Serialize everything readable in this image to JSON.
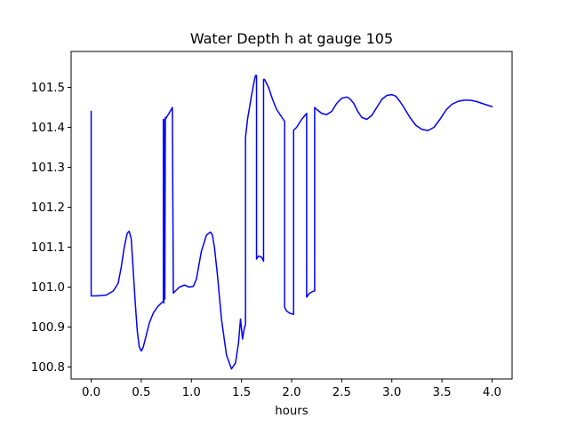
{
  "chart_data": {
    "type": "line",
    "title": "Water Depth h at gauge 105",
    "xlabel": "hours",
    "ylabel": "",
    "xlim": [
      -0.2,
      4.2
    ],
    "ylim": [
      100.77,
      101.59
    ],
    "xticks": [
      0.0,
      0.5,
      1.0,
      1.5,
      2.0,
      2.5,
      3.0,
      3.5,
      4.0
    ],
    "xtick_labels": [
      "0.0",
      "0.5",
      "1.0",
      "1.5",
      "2.0",
      "2.5",
      "3.0",
      "3.5",
      "4.0"
    ],
    "yticks": [
      100.8,
      100.9,
      101.0,
      101.1,
      101.2,
      101.3,
      101.4,
      101.5
    ],
    "ytick_labels": [
      "100.8",
      "100.9",
      "101.0",
      "101.1",
      "101.2",
      "101.3",
      "101.4",
      "101.5"
    ],
    "grid": false,
    "series": [
      {
        "color": "#0000ff",
        "x": [
          0.0,
          0.0,
          0.05,
          0.15,
          0.22,
          0.27,
          0.3,
          0.33,
          0.36,
          0.38,
          0.4,
          0.42,
          0.44,
          0.46,
          0.48,
          0.5,
          0.52,
          0.55,
          0.58,
          0.62,
          0.66,
          0.7,
          0.72,
          0.72,
          0.725,
          0.735,
          0.735,
          0.74,
          0.74,
          0.8,
          0.81,
          0.82,
          0.88,
          0.93,
          0.98,
          1.02,
          1.05,
          1.1,
          1.15,
          1.19,
          1.21,
          1.23,
          1.26,
          1.3,
          1.35,
          1.4,
          1.44,
          1.47,
          1.49,
          1.51,
          1.53,
          1.54,
          1.54,
          1.56,
          1.6,
          1.63,
          1.64,
          1.65,
          1.65,
          1.67,
          1.7,
          1.72,
          1.72,
          1.73,
          1.77,
          1.81,
          1.85,
          1.89,
          1.93,
          1.93,
          1.95,
          1.98,
          2.0,
          2.02,
          2.02,
          2.05,
          2.1,
          2.15,
          2.15,
          2.18,
          2.22,
          2.23,
          2.23,
          2.25,
          2.3,
          2.35,
          2.4,
          2.45,
          2.5,
          2.55,
          2.58,
          2.62,
          2.66,
          2.7,
          2.75,
          2.8,
          2.85,
          2.9,
          2.95,
          3.0,
          3.04,
          3.08,
          3.12,
          3.18,
          3.24,
          3.3,
          3.36,
          3.42,
          3.48,
          3.54,
          3.6,
          3.66,
          3.72,
          3.78,
          3.84,
          3.9,
          3.96,
          4.0
        ],
        "y": [
          101.44,
          100.978,
          100.978,
          100.98,
          100.99,
          101.01,
          101.05,
          101.1,
          101.135,
          101.14,
          101.12,
          101.04,
          100.96,
          100.89,
          100.85,
          100.84,
          100.85,
          100.88,
          100.91,
          100.935,
          100.95,
          100.96,
          100.965,
          101.42,
          100.96,
          101.42,
          100.97,
          101.425,
          101.42,
          101.445,
          101.45,
          100.985,
          101.0,
          101.005,
          101.0,
          101.002,
          101.02,
          101.09,
          101.13,
          101.138,
          101.13,
          101.1,
          101.03,
          100.92,
          100.83,
          100.795,
          100.81,
          100.86,
          100.92,
          100.87,
          100.9,
          100.905,
          101.375,
          101.42,
          101.48,
          101.52,
          101.53,
          101.53,
          101.07,
          101.078,
          101.075,
          101.065,
          101.52,
          101.52,
          101.5,
          101.47,
          101.445,
          101.43,
          101.415,
          100.95,
          100.94,
          100.935,
          100.933,
          100.932,
          101.393,
          101.4,
          101.42,
          101.435,
          100.975,
          100.985,
          100.99,
          100.99,
          101.45,
          101.445,
          101.435,
          101.432,
          101.44,
          101.46,
          101.473,
          101.476,
          101.472,
          101.46,
          101.44,
          101.425,
          101.42,
          101.43,
          101.45,
          101.47,
          101.48,
          101.482,
          101.478,
          101.465,
          101.45,
          101.425,
          101.405,
          101.395,
          101.392,
          101.4,
          101.42,
          101.443,
          101.458,
          101.465,
          101.468,
          101.468,
          101.465,
          101.46,
          101.455,
          101.452
        ]
      }
    ]
  }
}
